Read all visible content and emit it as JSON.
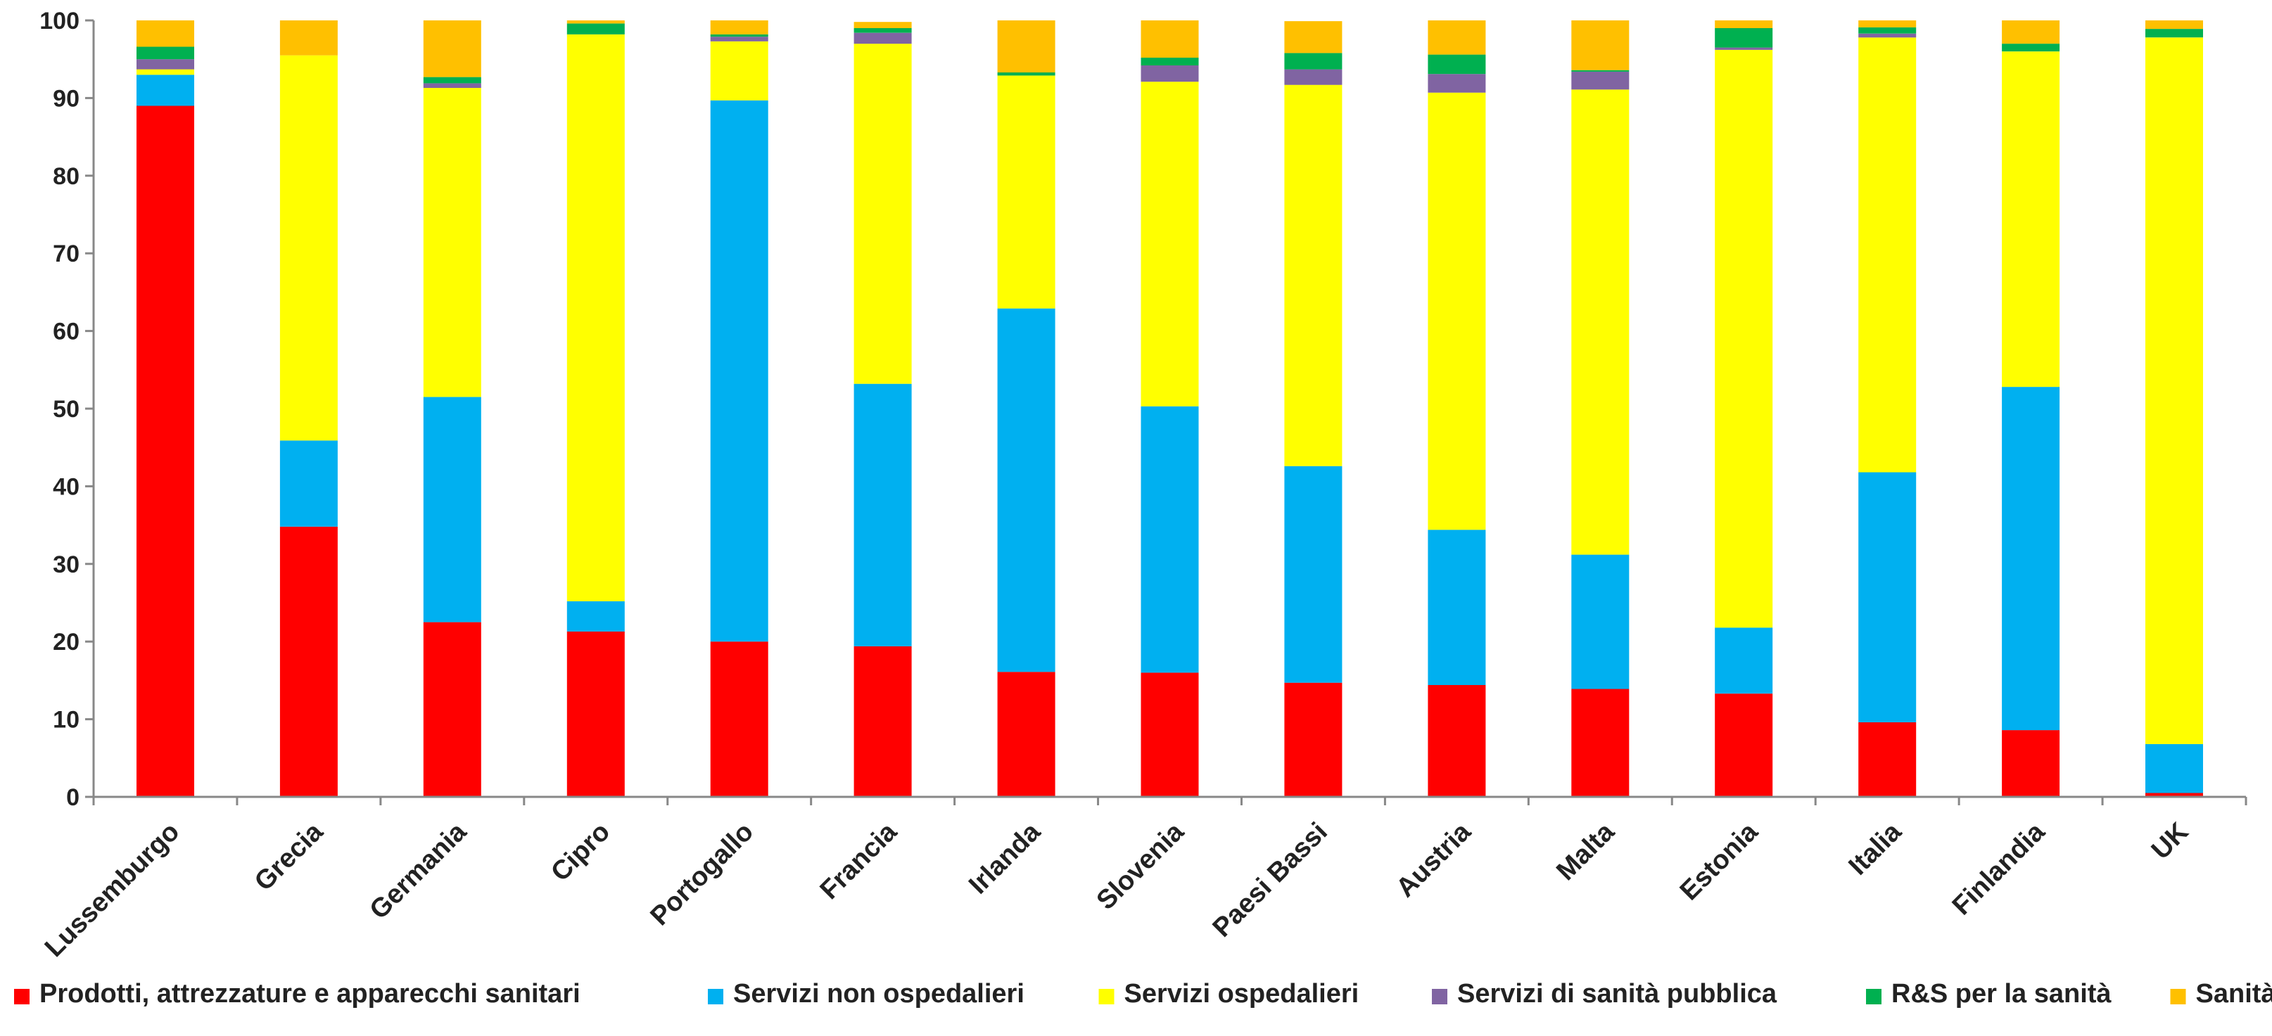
{
  "chart_data": {
    "type": "bar",
    "stacked": true,
    "categories": [
      "Lussemburgo",
      "Grecia",
      "Germania",
      "Cipro",
      "Portogallo",
      "Francia",
      "Irlanda",
      "Slovenia",
      "Paesi Bassi",
      "Austria",
      "Malta",
      "Estonia",
      "Italia",
      "Finlandia",
      "UK"
    ],
    "series": [
      {
        "name": "Prodotti, attrezzature e apparecchi sanitari",
        "color": "#ff0000",
        "values": [
          89.0,
          34.8,
          22.5,
          21.3,
          20.0,
          19.4,
          16.1,
          16.0,
          14.7,
          14.4,
          13.9,
          13.3,
          9.6,
          8.6,
          0.5
        ]
      },
      {
        "name": "Servizi non ospedalieri",
        "color": "#00b0f0",
        "values": [
          4.0,
          11.1,
          29.0,
          3.9,
          69.7,
          33.8,
          46.8,
          34.3,
          27.9,
          20.0,
          17.3,
          8.5,
          32.2,
          44.2,
          6.3
        ]
      },
      {
        "name": "Servizi ospedalieri",
        "color": "#ffff00",
        "values": [
          0.7,
          49.6,
          39.8,
          73.0,
          7.6,
          43.8,
          30.0,
          41.8,
          49.1,
          56.3,
          59.9,
          74.4,
          56.0,
          43.2,
          91.0
        ]
      },
      {
        "name": "Servizi di sanità pubblica",
        "color": "#8064a2",
        "values": [
          1.3,
          0.0,
          0.6,
          0.0,
          0.6,
          1.4,
          0.0,
          2.1,
          2.0,
          2.4,
          2.3,
          0.3,
          0.5,
          0.0,
          0.0
        ]
      },
      {
        "name": "R&S per la sanità",
        "color": "#00b050",
        "values": [
          1.6,
          0.0,
          0.8,
          1.4,
          0.3,
          0.6,
          0.4,
          1.0,
          2.1,
          2.5,
          0.2,
          2.5,
          0.8,
          1.0,
          1.1
        ]
      },
      {
        "name": "Sanità n.a.c.",
        "color": "#ffc000",
        "values": [
          3.4,
          4.5,
          7.3,
          0.4,
          1.8,
          0.8,
          6.7,
          4.8,
          4.1,
          4.4,
          6.4,
          1.0,
          0.9,
          3.0,
          1.1
        ]
      }
    ],
    "ylim": [
      0,
      100
    ],
    "yticks": [
      0,
      10,
      20,
      30,
      40,
      50,
      60,
      70,
      80,
      90,
      100
    ],
    "grid": false,
    "legend": "bottom"
  }
}
